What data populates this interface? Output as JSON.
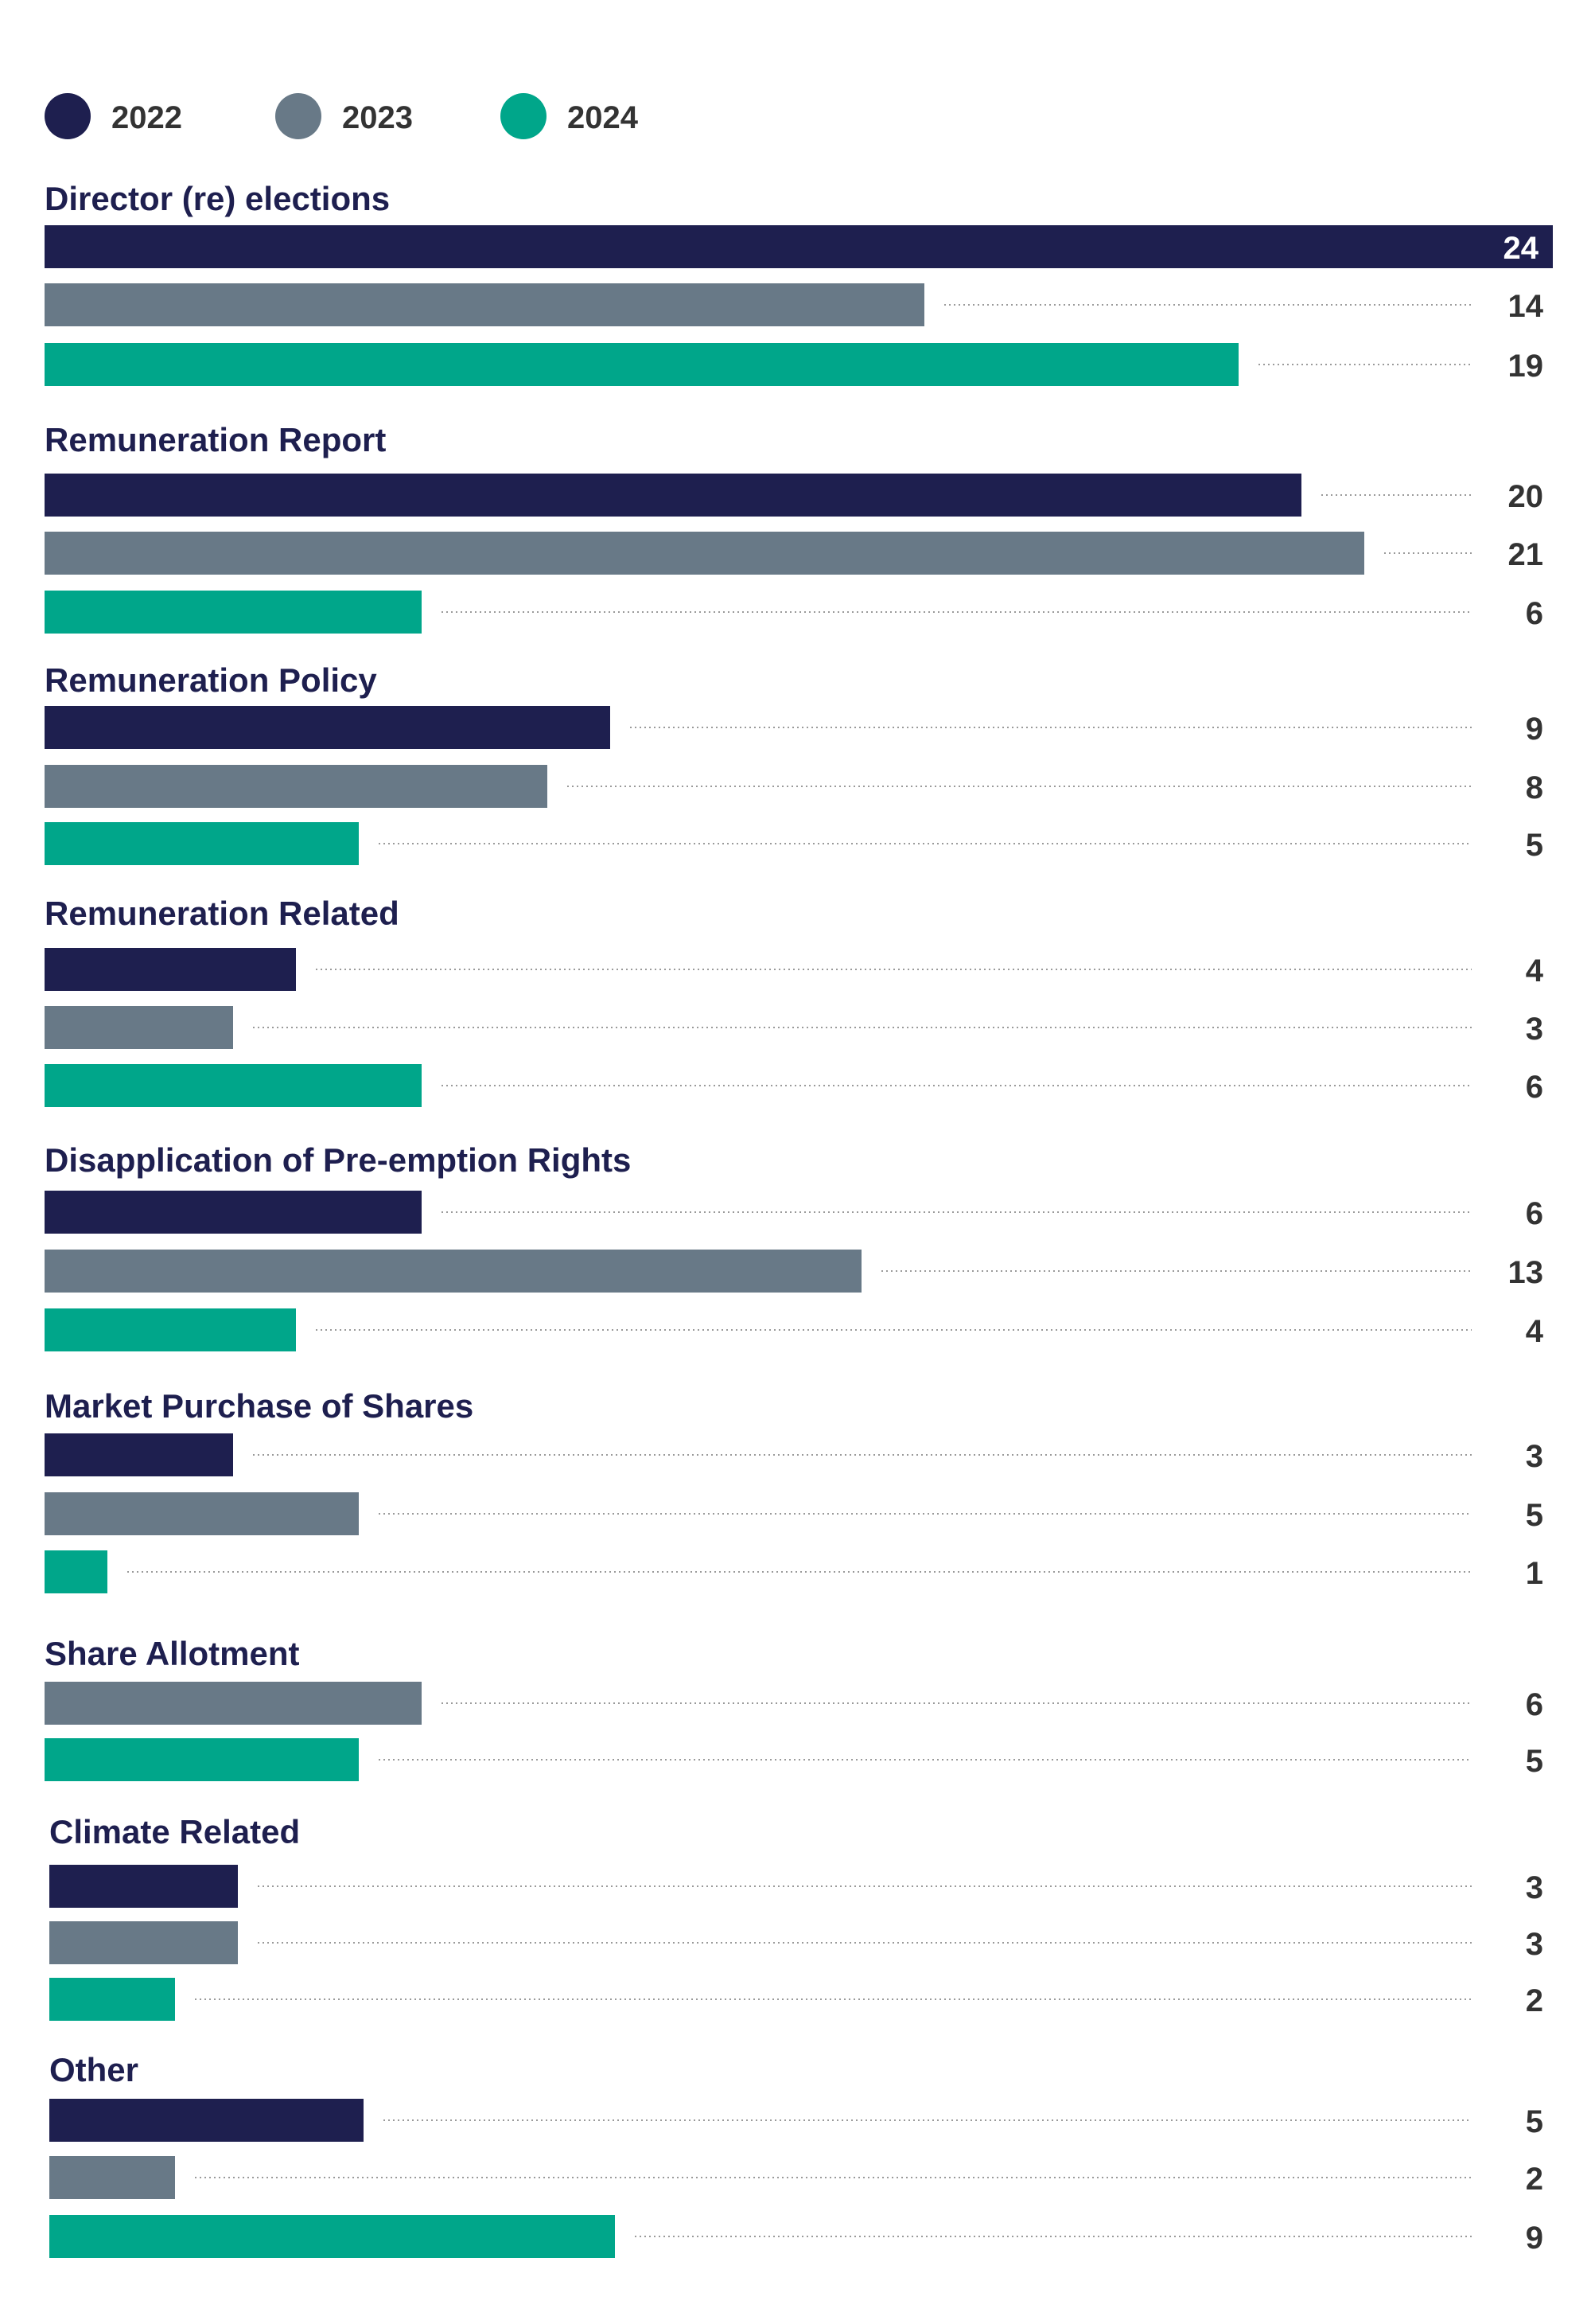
{
  "chart_data": {
    "type": "bar",
    "orientation": "horizontal",
    "legend_position": "top-left",
    "grid": false,
    "xlim": [
      0,
      24
    ],
    "series": [
      {
        "name": "2022",
        "color": "#1e1f4f"
      },
      {
        "name": "2023",
        "color": "#687987"
      },
      {
        "name": "2024",
        "color": "#00a68a"
      }
    ],
    "groups": [
      {
        "category": "Director (re) elections",
        "values": [
          24,
          14,
          19
        ]
      },
      {
        "category": "Remuneration Report",
        "values": [
          20,
          21,
          6
        ]
      },
      {
        "category": "Remuneration Policy",
        "values": [
          9,
          8,
          5
        ]
      },
      {
        "category": "Remuneration Related",
        "values": [
          4,
          3,
          6
        ]
      },
      {
        "category": "Disapplication of Pre-emption Rights",
        "values": [
          6,
          13,
          4
        ]
      },
      {
        "category": "Market Purchase of Shares",
        "values": [
          3,
          5,
          1
        ]
      },
      {
        "category": "Share Allotment",
        "values": [
          null,
          6,
          5
        ]
      },
      {
        "category": "Climate Related",
        "values": [
          3,
          3,
          2
        ]
      },
      {
        "category": "Other",
        "values": [
          5,
          2,
          9
        ]
      }
    ]
  },
  "colors": {
    "category_text": "#1e1f4f",
    "value_text": "#333333",
    "value_text_inside": "#ffffff",
    "leader_line": "#9a9a9a"
  }
}
